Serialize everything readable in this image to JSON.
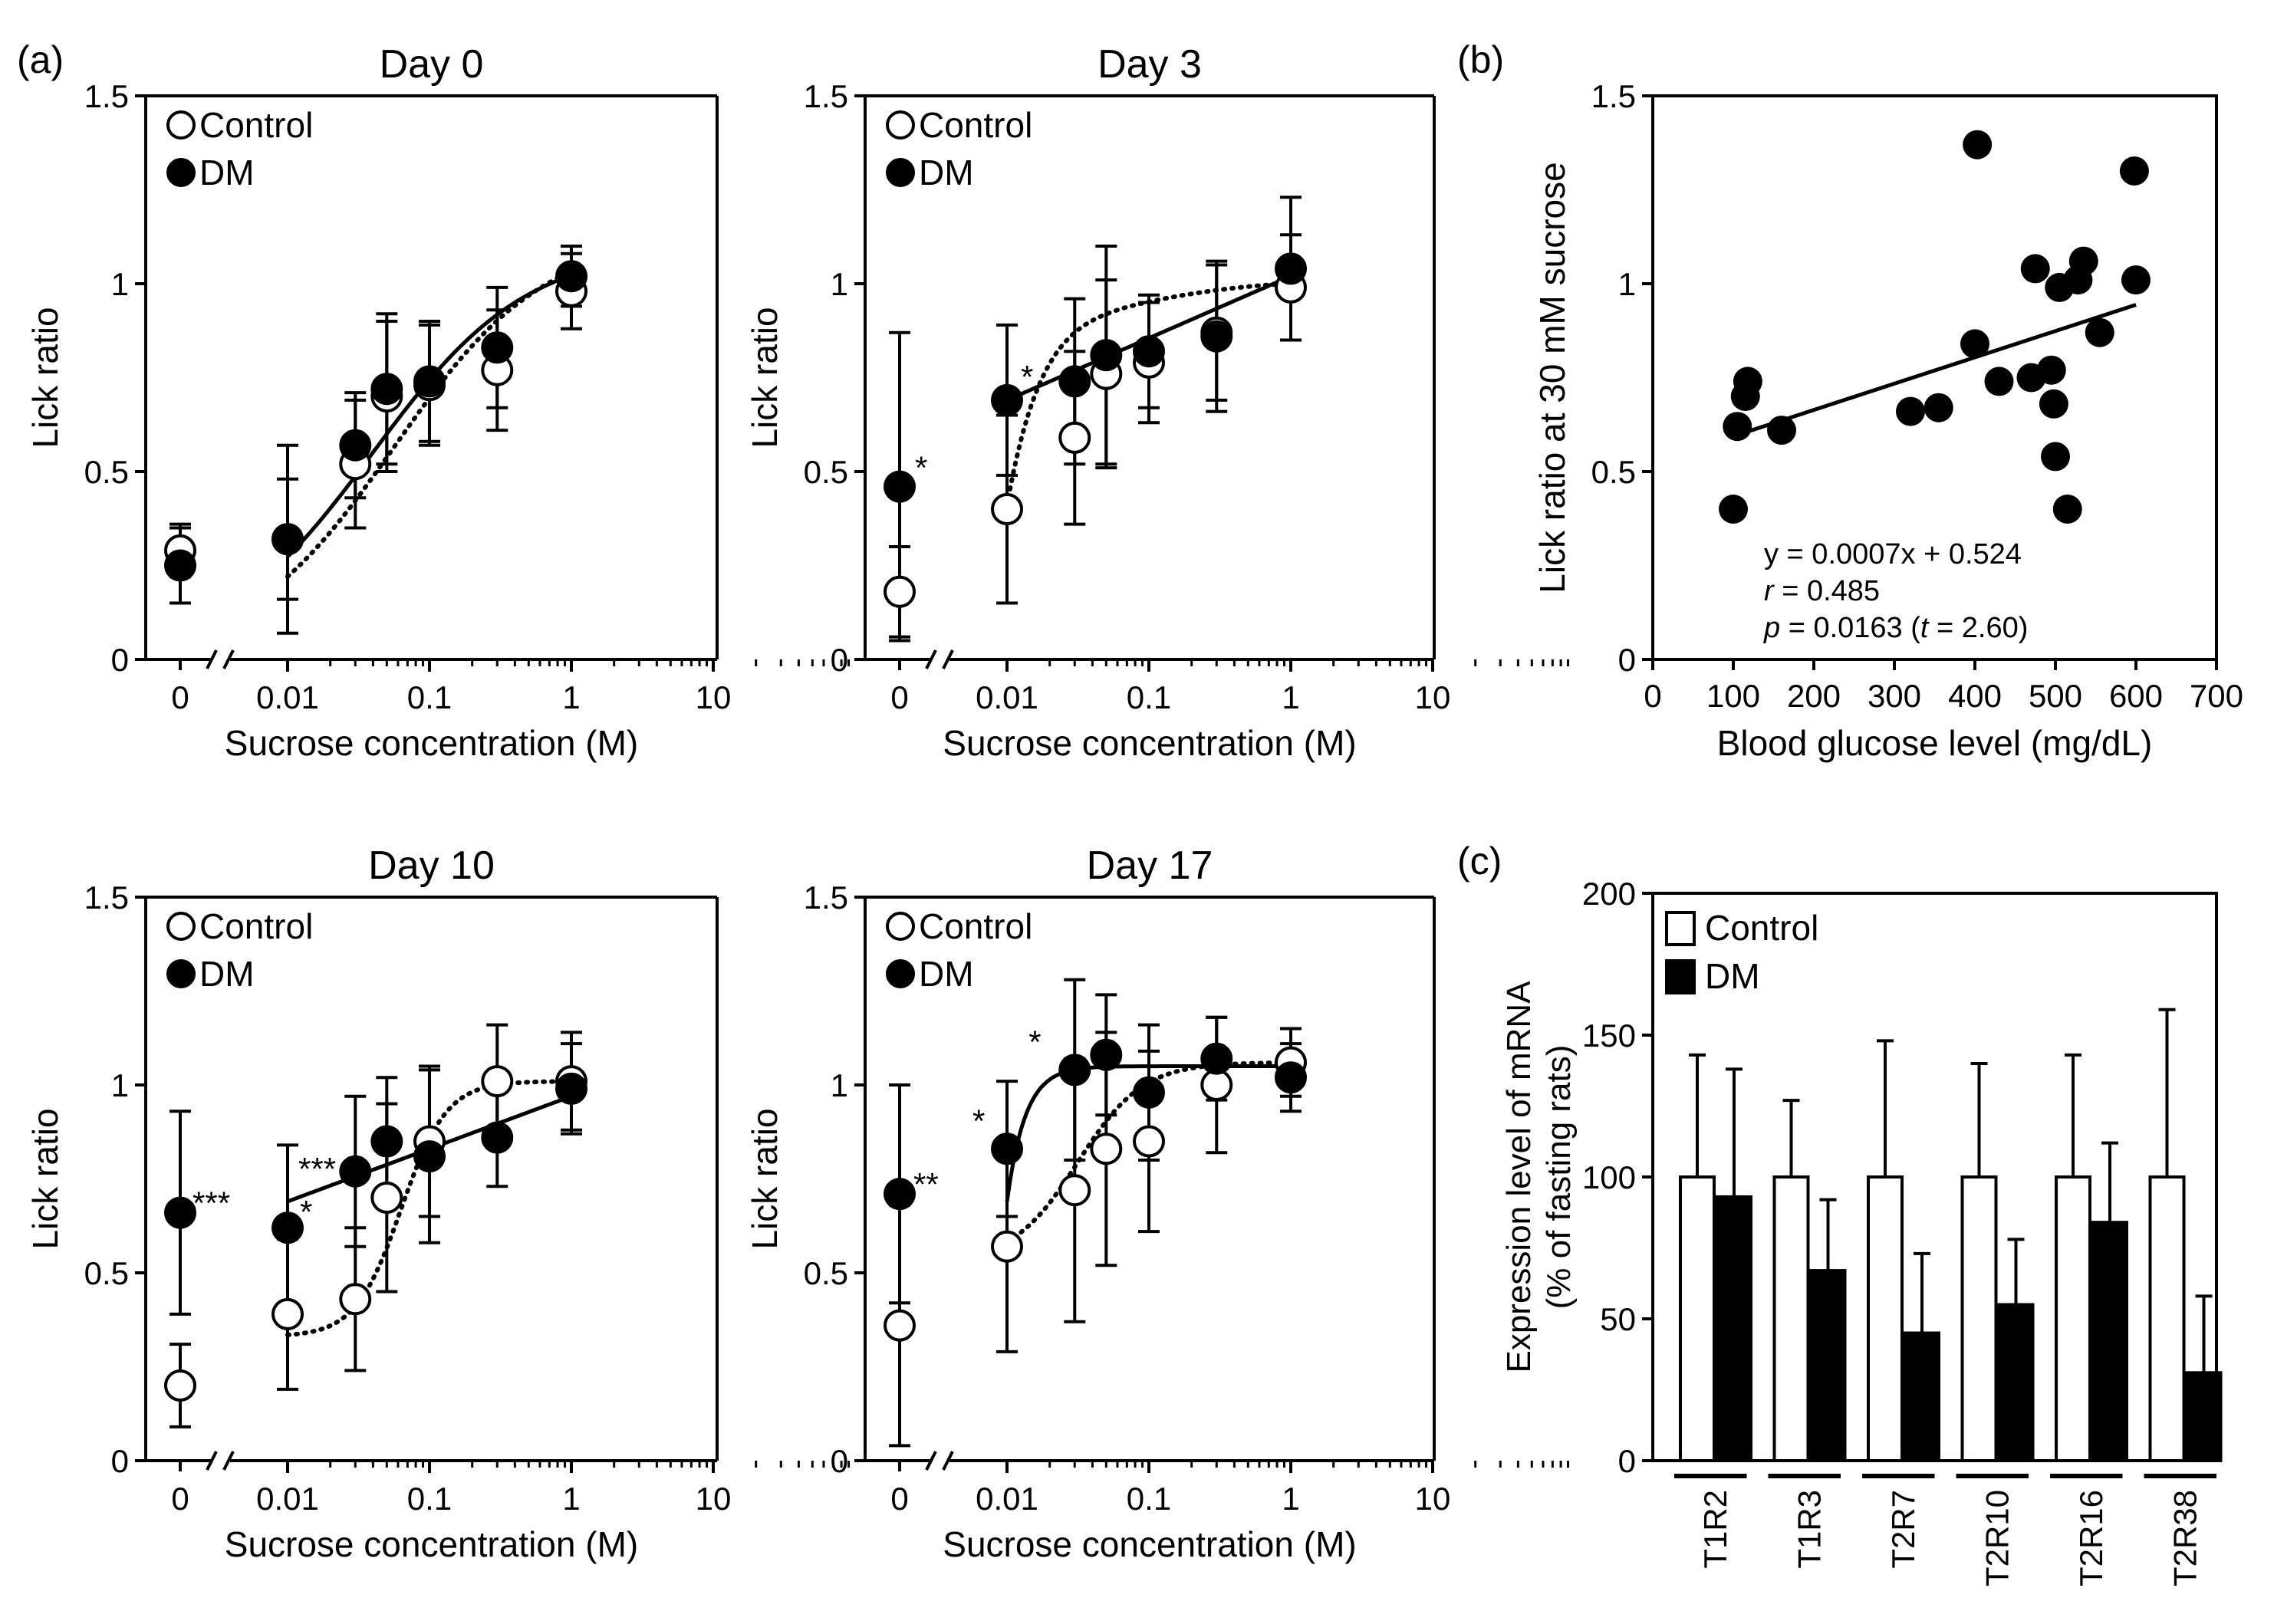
{
  "panel_labels": {
    "a": "(a)",
    "b": "(b)",
    "c": "(c)"
  },
  "chart_data": [
    {
      "type": "scatter",
      "title": "Day 0",
      "xlabel": "Sucrose concentration (M)",
      "ylabel": "Lick ratio",
      "x_scale": "log with broken axis at 0",
      "x_tick_labels": [
        "0",
        "0.01",
        "0.1",
        "1",
        "10"
      ],
      "y_tick_labels": [
        "0",
        "0.5",
        "1",
        "1.5"
      ],
      "ylim": [
        0,
        1.5
      ],
      "legend": [
        "Control",
        "DM"
      ],
      "legend_position": "top-left",
      "x": [
        0,
        0.01,
        0.03,
        0.05,
        0.1,
        0.3,
        1
      ],
      "series": [
        {
          "name": "Control",
          "marker": "open-circle",
          "fit": "dotted",
          "values": [
            0.29,
            0.32,
            0.52,
            0.7,
            0.73,
            0.77,
            0.98
          ],
          "errors": [
            0.07,
            0.16,
            0.17,
            0.2,
            0.16,
            0.16,
            0.1
          ]
        },
        {
          "name": "DM",
          "marker": "filled-circle",
          "fit": "solid",
          "values": [
            0.25,
            0.32,
            0.57,
            0.72,
            0.74,
            0.83,
            1.02
          ],
          "errors": [
            0.1,
            0.25,
            0.14,
            0.2,
            0.16,
            0.16,
            0.08
          ]
        }
      ],
      "annotations": []
    },
    {
      "type": "scatter",
      "title": "Day 3",
      "xlabel": "Sucrose concentration (M)",
      "ylabel": "Lick ratio",
      "x_scale": "log with broken axis at 0",
      "x_tick_labels": [
        "0",
        "0.01",
        "0.1",
        "1",
        "10"
      ],
      "y_tick_labels": [
        "0",
        "0.5",
        "1",
        "1.5"
      ],
      "ylim": [
        0,
        1.5
      ],
      "legend": [
        "Control",
        "DM"
      ],
      "legend_position": "top-left",
      "x": [
        0,
        0.01,
        0.03,
        0.05,
        0.1,
        0.3,
        1
      ],
      "series": [
        {
          "name": "Control",
          "marker": "open-circle",
          "fit": "dotted",
          "values": [
            0.18,
            0.4,
            0.59,
            0.76,
            0.79,
            0.87,
            0.99
          ],
          "errors": [
            0.12,
            0.25,
            0.23,
            0.25,
            0.16,
            0.18,
            0.14
          ]
        },
        {
          "name": "DM",
          "marker": "filled-circle",
          "fit": "solid",
          "values": [
            0.46,
            0.69,
            0.74,
            0.81,
            0.82,
            0.86,
            1.04
          ],
          "errors": [
            0.41,
            0.2,
            0.22,
            0.29,
            0.15,
            0.2,
            0.19
          ]
        }
      ],
      "annotations": [
        "*",
        "*"
      ]
    },
    {
      "type": "scatter",
      "title": "Day 10",
      "xlabel": "Sucrose concentration (M)",
      "ylabel": "Lick ratio",
      "x_scale": "log with broken axis at 0",
      "x_tick_labels": [
        "0",
        "0.01",
        "0.1",
        "1",
        "10"
      ],
      "y_tick_labels": [
        "0",
        "0.5",
        "1",
        "1.5"
      ],
      "ylim": [
        0,
        1.5
      ],
      "legend": [
        "Control",
        "DM"
      ],
      "legend_position": "top-left",
      "x": [
        0,
        0.01,
        0.03,
        0.05,
        0.1,
        0.3,
        1
      ],
      "series": [
        {
          "name": "Control",
          "marker": "open-circle",
          "fit": "dotted",
          "values": [
            0.2,
            0.39,
            0.43,
            0.7,
            0.85,
            1.01,
            1.01
          ],
          "errors": [
            0.11,
            0.2,
            0.19,
            0.25,
            0.2,
            0.15,
            0.13
          ]
        },
        {
          "name": "DM",
          "marker": "filled-circle",
          "fit": "solid",
          "values": [
            0.66,
            0.62,
            0.77,
            0.85,
            0.81,
            0.86,
            0.99
          ],
          "errors": [
            0.27,
            0.22,
            0.2,
            0.17,
            0.23,
            0.13,
            0.12
          ]
        }
      ],
      "annotations": [
        "***",
        "***",
        "*"
      ]
    },
    {
      "type": "scatter",
      "title": "Day 17",
      "xlabel": "Sucrose concentration (M)",
      "ylabel": "Lick ratio",
      "x_scale": "log with broken axis at 0",
      "x_tick_labels": [
        "0",
        "0.01",
        "0.1",
        "1",
        "10"
      ],
      "y_tick_labels": [
        "0",
        "0.5",
        "1",
        "1.5"
      ],
      "ylim": [
        0,
        1.5
      ],
      "legend": [
        "Control",
        "DM"
      ],
      "legend_position": "top-left",
      "x": [
        0,
        0.01,
        0.03,
        0.05,
        0.1,
        0.3,
        1
      ],
      "series": [
        {
          "name": "Control",
          "marker": "open-circle",
          "fit": "dotted",
          "values": [
            0.36,
            0.57,
            0.72,
            0.83,
            0.85,
            1.0,
            1.06
          ],
          "errors": [
            0.32,
            0.28,
            0.35,
            0.31,
            0.24,
            0.18,
            0.09
          ]
        },
        {
          "name": "DM",
          "marker": "filled-circle",
          "fit": "solid",
          "values": [
            0.71,
            0.83,
            1.04,
            1.08,
            0.98,
            1.07,
            1.02
          ],
          "errors": [
            0.29,
            0.18,
            0.24,
            0.16,
            0.18,
            0.11,
            0.09
          ]
        }
      ],
      "annotations": [
        "**",
        "*",
        "*"
      ]
    },
    {
      "type": "scatter",
      "xlabel": "Blood glucose level (mg/dL)",
      "ylabel": "Lick ratio at 30 mM sucrose",
      "xlim": [
        0,
        700
      ],
      "ylim": [
        0,
        1.5
      ],
      "x_tick_labels": [
        "0",
        "100",
        "200",
        "300",
        "400",
        "500",
        "600",
        "700"
      ],
      "y_tick_labels": [
        "0",
        "0.5",
        "1",
        "1.5"
      ],
      "points": [
        [
          100,
          0.4
        ],
        [
          105,
          0.62
        ],
        [
          115,
          0.7
        ],
        [
          118,
          0.74
        ],
        [
          160,
          0.61
        ],
        [
          320,
          0.66
        ],
        [
          355,
          0.67
        ],
        [
          400,
          0.84
        ],
        [
          403,
          1.37
        ],
        [
          430,
          0.74
        ],
        [
          470,
          0.75
        ],
        [
          475,
          1.04
        ],
        [
          495,
          0.77
        ],
        [
          498,
          0.68
        ],
        [
          500,
          0.54
        ],
        [
          505,
          0.99
        ],
        [
          515,
          0.4
        ],
        [
          528,
          1.01
        ],
        [
          535,
          1.06
        ],
        [
          555,
          0.87
        ],
        [
          598,
          1.3
        ],
        [
          600,
          1.01
        ]
      ],
      "regression": {
        "slope": 0.0007,
        "intercept": 0.524,
        "x_range": [
          100,
          600
        ]
      },
      "annotation_lines": {
        "equation": "y = 0.0007x + 0.524",
        "r_label": "r",
        "r_value": " = 0.485",
        "p_label": "p",
        "p_value": " = 0.0163 (",
        "t_label": "t",
        "t_value": " = 2.60)"
      }
    },
    {
      "type": "bar",
      "ylabel_line1": "Expression level of mRNA",
      "ylabel_line2": "(% of fasting rats)",
      "ylim": [
        0,
        200
      ],
      "y_tick_labels": [
        "0",
        "50",
        "100",
        "150",
        "200"
      ],
      "categories": [
        "T1R2",
        "T1R3",
        "T2R7",
        "T2R10",
        "T2R16",
        "T2R38"
      ],
      "legend": [
        "Control",
        "DM"
      ],
      "legend_position": "top-left",
      "series": [
        {
          "name": "Control",
          "fill": "open",
          "values": [
            100,
            100,
            100,
            100,
            100,
            100
          ],
          "errors": [
            43,
            27,
            48,
            40,
            43,
            59
          ]
        },
        {
          "name": "DM",
          "fill": "solid",
          "values": [
            93,
            67,
            45,
            55,
            84,
            31
          ],
          "errors": [
            45,
            25,
            28,
            23,
            28,
            27
          ]
        }
      ]
    }
  ]
}
